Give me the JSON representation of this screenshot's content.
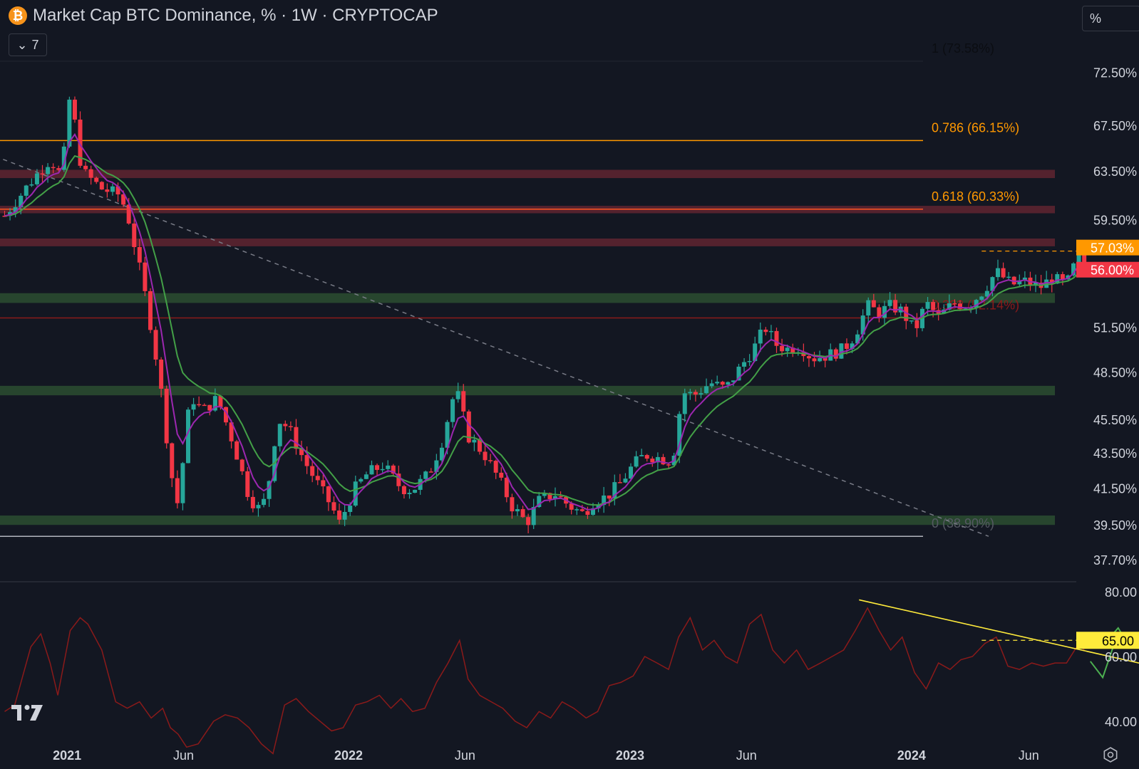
{
  "header": {
    "title": "Market Cap BTC Dominance, % · 1W · CRYPTOCAP",
    "btc_symbol": "₿",
    "indicator_count": "7",
    "scale_mode": "%"
  },
  "colors": {
    "background": "#131722",
    "up": "#26a69a",
    "down": "#f23645",
    "ma_fast": "#9c27b0",
    "ma_slow": "#43a047",
    "fib_orange": "#ff9800",
    "fib_red": "#b71c1c",
    "fib_gray": "#787b86",
    "resistance_zone": "#5c2330",
    "support_zone": "#2a4a30",
    "rsi_line": "#8b1a1a",
    "trendline_rsi": "#ffeb3b",
    "arrow": "#4caf50"
  },
  "chart_data": [
    {
      "type": "candlestick",
      "title": "Market Cap BTC Dominance, % · 1W · CRYPTOCAP",
      "y_scale": "log",
      "ylim": [
        37.2,
        76
      ],
      "y_ticks": [
        "72.50%",
        "67.50%",
        "63.50%",
        "59.50%",
        "51.50%",
        "48.50%",
        "45.50%",
        "43.50%",
        "41.50%",
        "39.50%",
        "37.70%"
      ],
      "x_range": [
        "2020-10-06",
        "2024-10-22"
      ],
      "x_ticks": [
        {
          "date": "2021-01-01",
          "label": "2021",
          "bold": true
        },
        {
          "date": "2021-06-01",
          "label": "Jun",
          "bold": false
        },
        {
          "date": "2022-01-01",
          "label": "2022",
          "bold": true
        },
        {
          "date": "2022-06-01",
          "label": "Jun",
          "bold": false
        },
        {
          "date": "2023-01-01",
          "label": "2023",
          "bold": true
        },
        {
          "date": "2023-06-01",
          "label": "Jun",
          "bold": false
        },
        {
          "date": "2024-01-01",
          "label": "2024",
          "bold": true
        },
        {
          "date": "2024-06-01",
          "label": "Jun",
          "bold": false
        }
      ],
      "start_date": "2020-10-12",
      "close_path": [
        [
          "2020-10-12",
          59.8
        ],
        [
          "2020-11-20",
          63.0
        ],
        [
          "2020-12-10",
          64.5
        ],
        [
          "2020-12-25",
          63.0
        ],
        [
          "2021-01-05",
          70.5
        ],
        [
          "2021-01-20",
          63.5
        ],
        [
          "2021-02-15",
          62.0
        ],
        [
          "2021-03-10",
          61.5
        ],
        [
          "2021-03-20",
          60.0
        ],
        [
          "2021-04-15",
          53.0
        ],
        [
          "2021-05-01",
          48.0
        ],
        [
          "2021-05-15",
          42.5
        ],
        [
          "2021-05-25",
          40.5
        ],
        [
          "2021-06-10",
          47.0
        ],
        [
          "2021-06-25",
          46.0
        ],
        [
          "2021-07-15",
          46.8
        ],
        [
          "2021-08-05",
          44.0
        ],
        [
          "2021-08-25",
          41.0
        ],
        [
          "2021-09-10",
          40.2
        ],
        [
          "2021-09-20",
          42.0
        ],
        [
          "2021-10-01",
          45.5
        ],
        [
          "2021-10-15",
          45.0
        ],
        [
          "2021-11-05",
          43.0
        ],
        [
          "2021-11-25",
          41.5
        ],
        [
          "2021-12-10",
          40.5
        ],
        [
          "2021-12-20",
          39.6
        ],
        [
          "2022-01-10",
          41.5
        ],
        [
          "2022-01-25",
          42.3
        ],
        [
          "2022-02-15",
          42.8
        ],
        [
          "2022-03-10",
          41.5
        ],
        [
          "2022-03-25",
          41.4
        ],
        [
          "2022-04-15",
          42.3
        ],
        [
          "2022-05-01",
          44.0
        ],
        [
          "2022-05-20",
          47.5
        ],
        [
          "2022-06-05",
          44.5
        ],
        [
          "2022-06-25",
          43.5
        ],
        [
          "2022-07-15",
          42.0
        ],
        [
          "2022-08-01",
          40.5
        ],
        [
          "2022-08-20",
          39.6
        ],
        [
          "2022-09-05",
          40.8
        ],
        [
          "2022-09-25",
          41.2
        ],
        [
          "2022-10-15",
          40.5
        ],
        [
          "2022-11-01",
          40.1
        ],
        [
          "2022-11-15",
          40.8
        ],
        [
          "2022-12-01",
          41.0
        ],
        [
          "2022-12-20",
          41.8
        ],
        [
          "2023-01-05",
          42.8
        ],
        [
          "2023-01-20",
          43.4
        ],
        [
          "2023-02-10",
          43.2
        ],
        [
          "2023-02-25",
          43.0
        ],
        [
          "2023-03-10",
          47.2
        ],
        [
          "2023-03-25",
          47.0
        ],
        [
          "2023-04-15",
          47.8
        ],
        [
          "2023-05-05",
          47.4
        ],
        [
          "2023-05-20",
          48.5
        ],
        [
          "2023-06-10",
          50.0
        ],
        [
          "2023-06-25",
          51.5
        ],
        [
          "2023-07-10",
          50.3
        ],
        [
          "2023-07-25",
          50.0
        ],
        [
          "2023-08-10",
          50.2
        ],
        [
          "2023-08-25",
          49.4
        ],
        [
          "2023-09-15",
          49.6
        ],
        [
          "2023-10-05",
          50.0
        ],
        [
          "2023-10-20",
          51.0
        ],
        [
          "2023-11-05",
          53.0
        ],
        [
          "2023-11-20",
          52.5
        ],
        [
          "2023-12-05",
          53.0
        ],
        [
          "2023-12-20",
          52.6
        ],
        [
          "2024-01-05",
          51.2
        ],
        [
          "2024-01-20",
          53.2
        ],
        [
          "2024-02-05",
          52.2
        ],
        [
          "2024-02-25",
          53.2
        ],
        [
          "2024-03-15",
          53.0
        ],
        [
          "2024-04-05",
          54.2
        ],
        [
          "2024-04-20",
          55.5
        ],
        [
          "2024-05-10",
          54.5
        ],
        [
          "2024-05-25",
          54.8
        ],
        [
          "2024-06-15",
          54.3
        ],
        [
          "2024-07-01",
          55.0
        ],
        [
          "2024-07-20",
          54.5
        ],
        [
          "2024-08-05",
          56.8
        ],
        [
          "2024-08-12",
          56.0
        ]
      ],
      "ma_fast_lag_weeks": 2,
      "ma_slow_lag_weeks": 5,
      "horizontal_zones": [
        {
          "kind": "resistance",
          "low": 62.9,
          "high": 63.6
        },
        {
          "kind": "resistance",
          "low": 60.0,
          "high": 60.6
        },
        {
          "kind": "resistance",
          "low": 57.4,
          "high": 58.0
        },
        {
          "kind": "support",
          "low": 53.2,
          "high": 53.9
        },
        {
          "kind": "support",
          "low": 47.0,
          "high": 47.6
        },
        {
          "kind": "support",
          "low": 39.5,
          "high": 40.0
        }
      ],
      "fib_levels": [
        {
          "value": 73.58,
          "label": "1 (73.58%)",
          "color": "#1e222d",
          "label_color": "#0b0d12"
        },
        {
          "value": 66.15,
          "label": "0.786 (66.15%)",
          "color": "#ff9800",
          "label_color": "#ff9800"
        },
        {
          "value": 60.33,
          "label": "0.618 (60.33%)",
          "color": "#ff5722",
          "label_color": "#ff9800"
        },
        {
          "value": 52.14,
          "label": "0.382 (52.14%)",
          "color": "#8b1a1a",
          "label_color": "#8b1a1a"
        },
        {
          "value": 38.9,
          "label": "0 (38.90%)",
          "color": "#b2b5be",
          "label_color": "#555963"
        }
      ],
      "dashed_trendline": {
        "from": [
          "2020-10-10",
          64.5
        ],
        "to": [
          "2024-04-10",
          38.9
        ]
      },
      "reference_line": {
        "value": 57.03,
        "from": "2024-04-01"
      },
      "price_labels": [
        {
          "value": 57.03,
          "text": "57.03%",
          "bg": "#ff9800"
        },
        {
          "value": 56.0,
          "text": "56.00%",
          "bg": "#f23645"
        }
      ]
    },
    {
      "type": "line",
      "title": "",
      "ylim": [
        38,
        82
      ],
      "y_ticks": [
        "80.00",
        "60.00",
        "40.00"
      ],
      "series": [
        {
          "points": [
            [
              "2020-10-12",
              43
            ],
            [
              "2020-10-25",
              45
            ],
            [
              "2020-11-15",
              63
            ],
            [
              "2020-11-28",
              67
            ],
            [
              "2020-12-10",
              58
            ],
            [
              "2020-12-20",
              48
            ],
            [
              "2021-01-05",
              68
            ],
            [
              "2021-01-18",
              72
            ],
            [
              "2021-01-28",
              70
            ],
            [
              "2021-02-15",
              62
            ],
            [
              "2021-03-05",
              46
            ],
            [
              "2021-03-20",
              44
            ],
            [
              "2021-04-05",
              46
            ],
            [
              "2021-04-20",
              41
            ],
            [
              "2021-05-05",
              44
            ],
            [
              "2021-05-15",
              38
            ],
            [
              "2021-05-25",
              36
            ],
            [
              "2021-06-05",
              32
            ],
            [
              "2021-06-20",
              33
            ],
            [
              "2021-07-10",
              40
            ],
            [
              "2021-07-25",
              42
            ],
            [
              "2021-08-10",
              41
            ],
            [
              "2021-08-25",
              38
            ],
            [
              "2021-09-10",
              33
            ],
            [
              "2021-09-25",
              30
            ],
            [
              "2021-10-10",
              45
            ],
            [
              "2021-10-25",
              47
            ],
            [
              "2021-11-10",
              43
            ],
            [
              "2021-11-25",
              40
            ],
            [
              "2021-12-10",
              37
            ],
            [
              "2021-12-25",
              38
            ],
            [
              "2022-01-10",
              45
            ],
            [
              "2022-01-25",
              46
            ],
            [
              "2022-02-10",
              48
            ],
            [
              "2022-02-25",
              44
            ],
            [
              "2022-03-10",
              47
            ],
            [
              "2022-03-25",
              43
            ],
            [
              "2022-04-10",
              44
            ],
            [
              "2022-04-25",
              52
            ],
            [
              "2022-05-10",
              58
            ],
            [
              "2022-05-25",
              65
            ],
            [
              "2022-06-05",
              53
            ],
            [
              "2022-06-20",
              48
            ],
            [
              "2022-07-05",
              46
            ],
            [
              "2022-07-20",
              44
            ],
            [
              "2022-08-05",
              40
            ],
            [
              "2022-08-20",
              38
            ],
            [
              "2022-09-05",
              43
            ],
            [
              "2022-09-20",
              41
            ],
            [
              "2022-10-05",
              46
            ],
            [
              "2022-10-20",
              44
            ],
            [
              "2022-11-05",
              41
            ],
            [
              "2022-11-20",
              43
            ],
            [
              "2022-12-05",
              51
            ],
            [
              "2022-12-20",
              52
            ],
            [
              "2023-01-05",
              54
            ],
            [
              "2023-01-20",
              60
            ],
            [
              "2023-02-05",
              58
            ],
            [
              "2023-02-20",
              56
            ],
            [
              "2023-03-05",
              66
            ],
            [
              "2023-03-20",
              72
            ],
            [
              "2023-04-05",
              62
            ],
            [
              "2023-04-20",
              65
            ],
            [
              "2023-05-05",
              60
            ],
            [
              "2023-05-20",
              58
            ],
            [
              "2023-06-05",
              70
            ],
            [
              "2023-06-20",
              73
            ],
            [
              "2023-07-05",
              62
            ],
            [
              "2023-07-20",
              58
            ],
            [
              "2023-08-05",
              62
            ],
            [
              "2023-08-20",
              56
            ],
            [
              "2023-09-05",
              58
            ],
            [
              "2023-09-20",
              60
            ],
            [
              "2023-10-05",
              62
            ],
            [
              "2023-10-20",
              68
            ],
            [
              "2023-11-05",
              75
            ],
            [
              "2023-11-20",
              68
            ],
            [
              "2023-12-05",
              62
            ],
            [
              "2023-12-20",
              66
            ],
            [
              "2024-01-05",
              55
            ],
            [
              "2024-01-20",
              50
            ],
            [
              "2024-02-05",
              58
            ],
            [
              "2024-02-20",
              56
            ],
            [
              "2024-03-05",
              59
            ],
            [
              "2024-03-20",
              60
            ],
            [
              "2024-04-05",
              64
            ],
            [
              "2024-04-20",
              66
            ],
            [
              "2024-05-05",
              57
            ],
            [
              "2024-05-20",
              56
            ],
            [
              "2024-06-05",
              58
            ],
            [
              "2024-06-20",
              57
            ],
            [
              "2024-07-05",
              58
            ],
            [
              "2024-07-20",
              58
            ],
            [
              "2024-08-05",
              64
            ],
            [
              "2024-08-12",
              62
            ]
          ]
        }
      ],
      "trendline": {
        "from": [
          "2023-10-25",
          77.5
        ],
        "to": [
          "2025-02-10",
          52
        ]
      },
      "level_line": {
        "value": 65,
        "from": "2024-04-01"
      },
      "level_label": {
        "text": "65.00",
        "bg": "#ffeb3b",
        "color": "#000000"
      },
      "projection_arrow": [
        [
          "2024-08-20",
          58.5
        ],
        [
          "2024-09-05",
          53.5
        ],
        [
          "2024-09-25",
          67.5
        ]
      ]
    }
  ]
}
